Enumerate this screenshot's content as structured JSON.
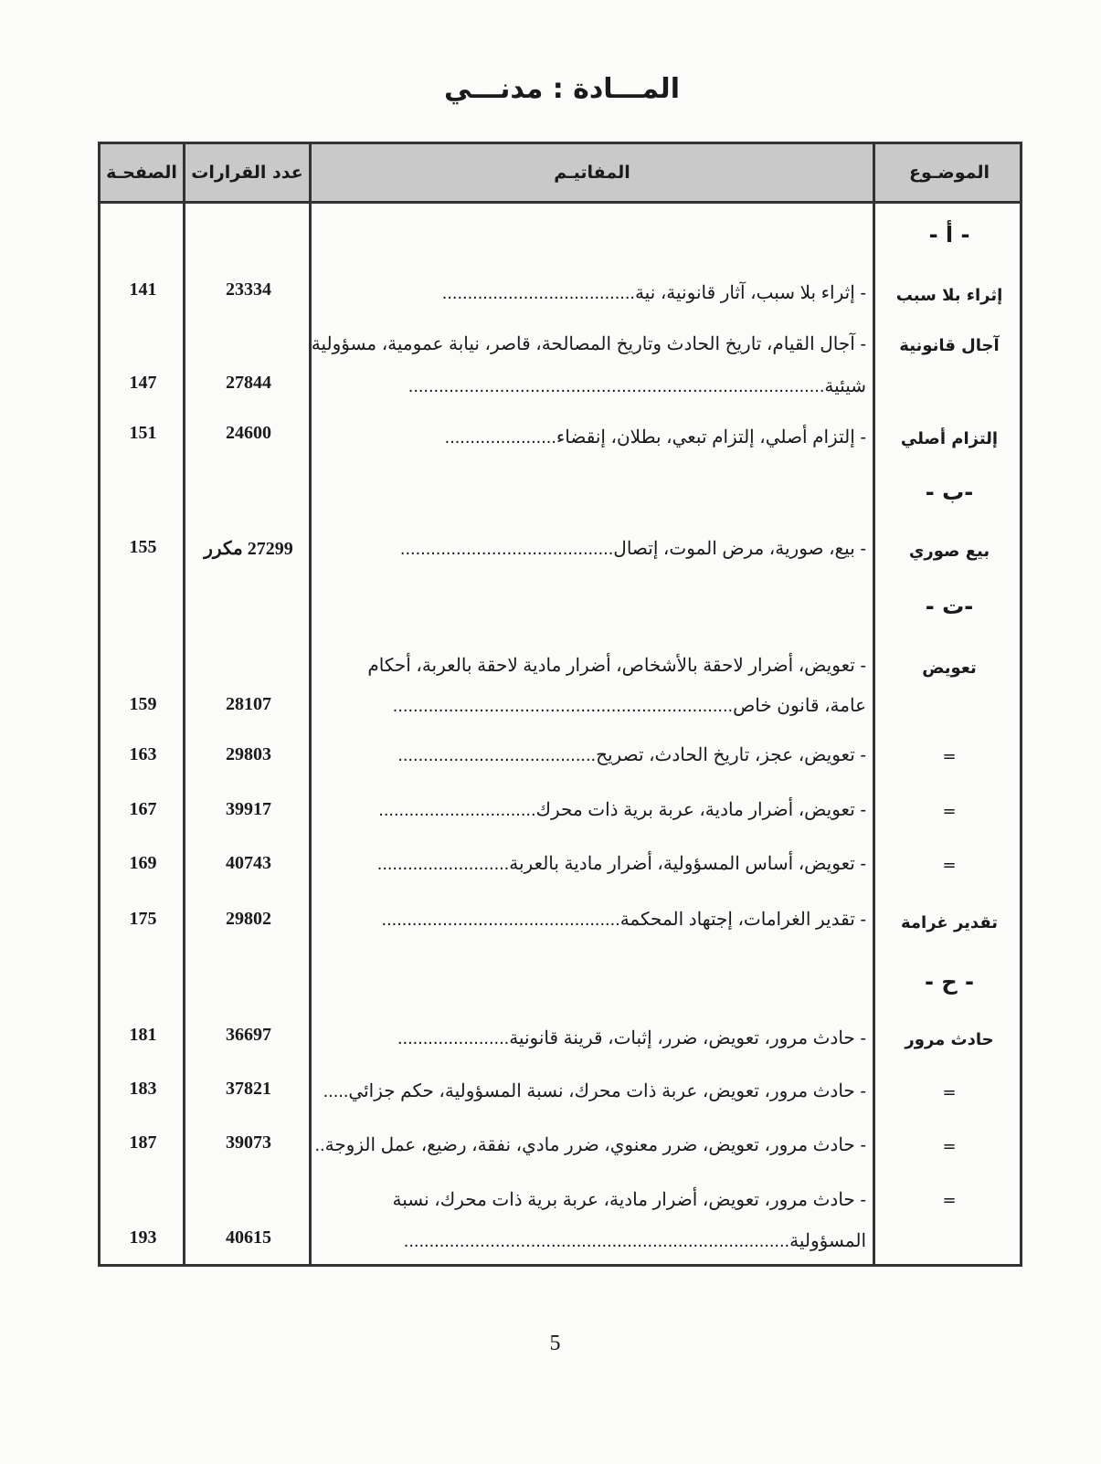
{
  "title": "المـــادة : مدنـــي",
  "headers": {
    "subject": "الموضـوع",
    "keywords": "المفاتيـم",
    "count": "عدد القرارات",
    "page": "الصفحـة"
  },
  "letters": [
    "- أ -",
    "-ب -",
    "-ت -",
    "- ح -"
  ],
  "rows": [
    {
      "subject": "إثراء بلا سبب",
      "keywords": [
        "- إثراء بلا سبب، آثار قانونية، نية......................................"
      ],
      "count": "23334",
      "page": "141"
    },
    {
      "subject": "آجال قانونية",
      "keywords": [
        "- آجال القيام، تاريخ الحادث وتاريخ المصالحة، قاصر، نيابة عمومية، مسؤولية",
        "شيئية.................................................................................."
      ],
      "count": "27844",
      "page": "147"
    },
    {
      "subject": "إلتزام أصلي",
      "keywords": [
        "- إلتزام أصلي، إلتزام تبعي، بطلان، إنقضاء......................"
      ],
      "count": "24600",
      "page": "151"
    },
    {
      "subject": "بيع صوري",
      "keywords": [
        "- بيع، صورية، مرض الموت، إتصال.........................................."
      ],
      "count": "27299 مكرر",
      "page": "155"
    },
    {
      "subject": "تعويض",
      "keywords": [
        "- تعويض، أضرار لاحقة بالأشخاص، أضرار مادية لاحقة بالعربة، أحكام",
        "عامة، قانون خاص..................................................................."
      ],
      "count": "28107",
      "page": "159"
    },
    {
      "subject": "=",
      "keywords": [
        "- تعويض، عجز، تاريخ الحادث، تصريح......................................."
      ],
      "count": "29803",
      "page": "163"
    },
    {
      "subject": "=",
      "keywords": [
        "- تعويض، أضرار مادية، عربة برية ذات محرك..............................."
      ],
      "count": "39917",
      "page": "167"
    },
    {
      "subject": "=",
      "keywords": [
        "- تعويض، أساس المسؤولية، أضرار مادية بالعربة.........................."
      ],
      "count": "40743",
      "page": "169"
    },
    {
      "subject": "تقدير غرامة",
      "keywords": [
        "- تقدير الغرامات، إجتهاد المحكمة..............................................."
      ],
      "count": "29802",
      "page": "175"
    },
    {
      "subject": "حادث مرور",
      "keywords": [
        "- حادث مرور، تعويض، ضرر، إثبات، قرينة قانونية......................"
      ],
      "count": "36697",
      "page": "181"
    },
    {
      "subject": "=",
      "keywords": [
        "- حادث مرور، تعويض، عربة ذات محرك، نسبة المسؤولية، حكم جزائي....."
      ],
      "count": "37821",
      "page": "183"
    },
    {
      "subject": "=",
      "keywords": [
        "- حادث مرور، تعويض، ضرر معنوي، ضرر مادي، نفقة، رضيع، عمل الزوجة.."
      ],
      "count": "39073",
      "page": "187"
    },
    {
      "subject": "=",
      "keywords": [
        "- حادث مرور، تعويض، أضرار مادية، عربة برية ذات محرك، نسبة",
        "المسؤولية............................................................................"
      ],
      "count": "40615",
      "page": "193"
    }
  ],
  "page_number": "5"
}
